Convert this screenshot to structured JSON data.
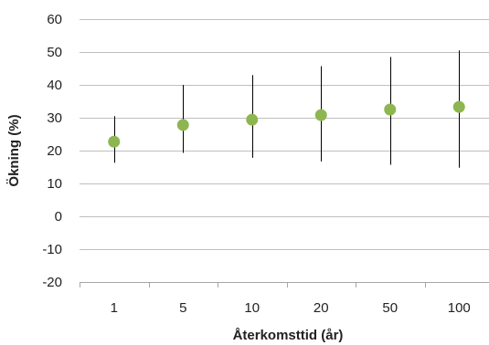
{
  "chart_data": {
    "type": "scatter",
    "title": "",
    "xlabel": "Återkomsttid (år)",
    "ylabel": "Ökning (%)",
    "categories": [
      "1",
      "5",
      "10",
      "20",
      "50",
      "100"
    ],
    "series": [
      {
        "values": [
          22.7,
          27.8,
          29.4,
          30.8,
          32.5,
          33.3
        ],
        "error_low": [
          16.3,
          19.3,
          17.8,
          16.7,
          15.7,
          14.8
        ],
        "error_high": [
          30.5,
          40.0,
          43.0,
          45.7,
          48.5,
          50.5
        ]
      }
    ],
    "ylim": [
      -20,
      60
    ],
    "yticks": [
      -20,
      -10,
      0,
      10,
      20,
      30,
      40,
      50,
      60
    ],
    "grid": true,
    "legend": "none",
    "colors": {
      "marker": "#8db650",
      "error_bar": "#000000",
      "grid": "#bfbfbf",
      "axis": "#a6a6a6"
    }
  }
}
